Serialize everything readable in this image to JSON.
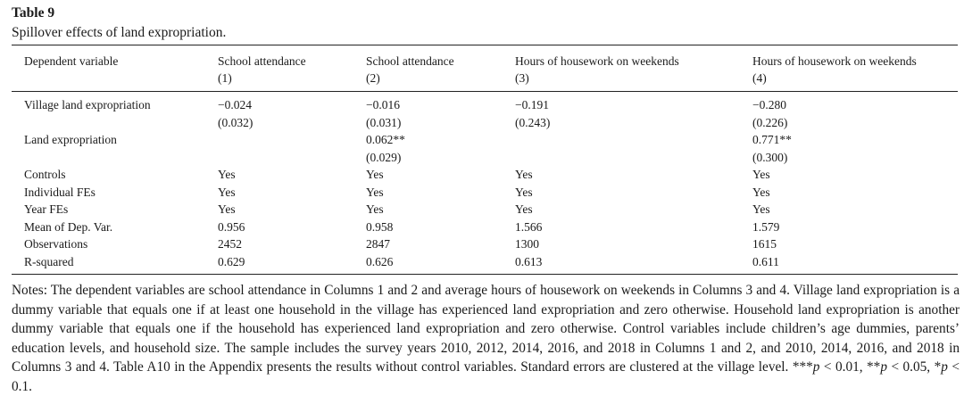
{
  "table": {
    "label": "Table 9",
    "title": "Spillover effects of land expropriation."
  },
  "header": {
    "dep_var_label": "Dependent variable",
    "columns": [
      {
        "name": "School attendance",
        "num": "(1)"
      },
      {
        "name": "School attendance",
        "num": "(2)"
      },
      {
        "name": "Hours of housework on weekends",
        "num": "(3)"
      },
      {
        "name": "Hours of housework on weekends",
        "num": "(4)"
      }
    ]
  },
  "rows": [
    {
      "label": "Village land expropriation",
      "cells": [
        "−0.024",
        "−0.016",
        "−0.191",
        "−0.280"
      ]
    },
    {
      "label": "",
      "cells": [
        "(0.032)",
        "(0.031)",
        "(0.243)",
        "(0.226)"
      ]
    },
    {
      "label": "Land expropriation",
      "cells": [
        "",
        "0.062**",
        "",
        "0.771**"
      ]
    },
    {
      "label": "",
      "cells": [
        "",
        "(0.029)",
        "",
        "(0.300)"
      ]
    },
    {
      "label": "Controls",
      "cells": [
        "Yes",
        "Yes",
        "Yes",
        "Yes"
      ]
    },
    {
      "label": "Individual FEs",
      "cells": [
        "Yes",
        "Yes",
        "Yes",
        "Yes"
      ]
    },
    {
      "label": "Year FEs",
      "cells": [
        "Yes",
        "Yes",
        "Yes",
        "Yes"
      ]
    },
    {
      "label": "Mean of Dep. Var.",
      "cells": [
        "0.956",
        "0.958",
        "1.566",
        "1.579"
      ]
    },
    {
      "label": "Observations",
      "cells": [
        "2452",
        "2847",
        "1300",
        "1615"
      ]
    },
    {
      "label": "R-squared",
      "cells": [
        "0.629",
        "0.626",
        "0.613",
        "0.611"
      ]
    }
  ],
  "notes": {
    "text": "Notes: The dependent variables are school attendance in Columns 1 and 2 and average hours of housework on weekends in Columns 3 and 4. Village land expropriation is a dummy variable that equals one if at least one household in the village has experienced land expropriation and zero otherwise. Household land expropriation is another dummy variable that equals one if the household has experienced land expropriation and zero otherwise. Control variables include children’s age dummies, parents’ education levels, and household size. The sample includes the survey years 2010, 2012, 2014, 2016, and 2018 in Columns 1 and 2, and 2010, 2014, 2016, and 2018 in Columns 3 and 4. Table A10 in the Appendix presents the results without control variables. Standard errors are clustered at the village level.",
    "sig_1": "***",
    "sig_1_p": "p",
    "sig_1_rest": " < 0.01, ",
    "sig_2": "**",
    "sig_2_p": "p",
    "sig_2_rest": " < 0.05, ",
    "sig_3": "*",
    "sig_3_p": "p",
    "sig_3_rest": " < 0.1."
  }
}
